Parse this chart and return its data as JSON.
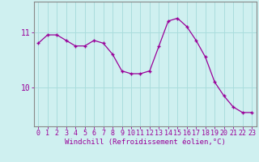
{
  "x": [
    0,
    1,
    2,
    3,
    4,
    5,
    6,
    7,
    8,
    9,
    10,
    11,
    12,
    13,
    14,
    15,
    16,
    17,
    18,
    19,
    20,
    21,
    22,
    23
  ],
  "y": [
    10.8,
    10.95,
    10.95,
    10.85,
    10.75,
    10.75,
    10.85,
    10.8,
    10.6,
    10.3,
    10.25,
    10.25,
    10.3,
    10.75,
    11.2,
    11.25,
    11.1,
    10.85,
    10.55,
    10.1,
    9.85,
    9.65,
    9.55,
    9.55
  ],
  "line_color": "#990099",
  "marker": "+",
  "bg_color": "#cff0f0",
  "grid_color": "#aadddd",
  "axis_color": "#888888",
  "xlabel": "Windchill (Refroidissement éolien,°C)",
  "ylabel": "",
  "ylim": [
    9.3,
    11.55
  ],
  "xlim": [
    -0.5,
    23.5
  ],
  "yticks": [
    10,
    11
  ],
  "xticks": [
    0,
    1,
    2,
    3,
    4,
    5,
    6,
    7,
    8,
    9,
    10,
    11,
    12,
    13,
    14,
    15,
    16,
    17,
    18,
    19,
    20,
    21,
    22,
    23
  ],
  "xlabel_fontsize": 6.5,
  "tick_fontsize": 6,
  "label_color": "#990099"
}
